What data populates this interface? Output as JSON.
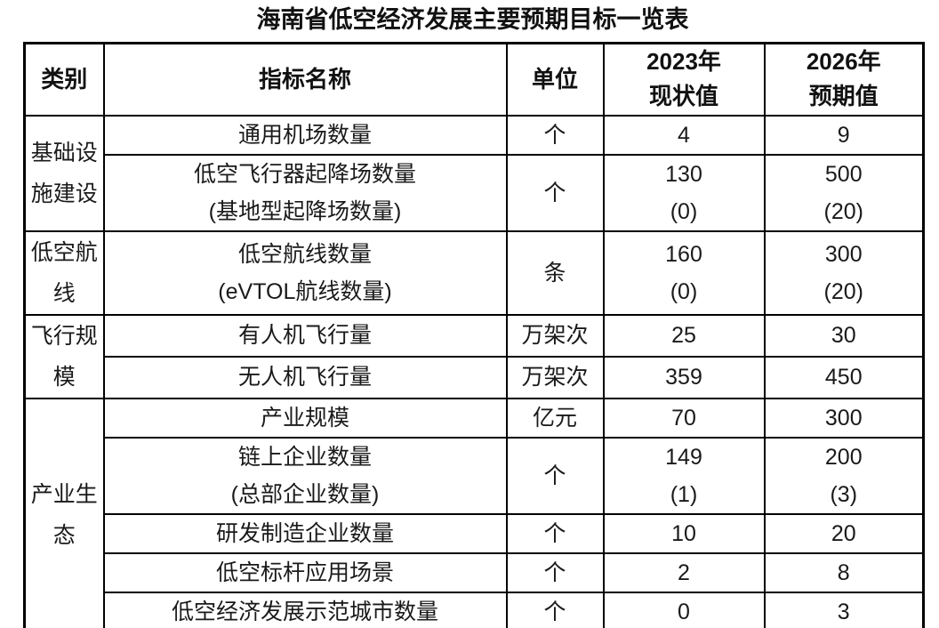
{
  "title": "海南省低空经济发展主要预期目标一览表",
  "header": {
    "category": "类别",
    "indicator": "指标名称",
    "unit": "单位",
    "y2023": "2023年\n现状值",
    "y2026": "2026年\n预期值"
  },
  "categories": [
    {
      "label": "基础设施建设"
    },
    {
      "label": "低空航线"
    },
    {
      "label": "飞行规模"
    },
    {
      "label": "产业生态"
    }
  ],
  "rows": [
    {
      "indicator": "通用机场数量",
      "unit": "个",
      "v2023": "4",
      "v2026": "9"
    },
    {
      "indicator": "低空飞行器起降场数量\n(基地型起降场数量)",
      "unit": "个",
      "v2023": "130\n(0)",
      "v2026": "500\n(20)"
    },
    {
      "indicator": "低空航线数量\n(eVTOL航线数量)",
      "unit": "条",
      "v2023": "160\n(0)",
      "v2026": "300\n(20)"
    },
    {
      "indicator": "有人机飞行量",
      "unit": "万架次",
      "v2023": "25",
      "v2026": "30"
    },
    {
      "indicator": "无人机飞行量",
      "unit": "万架次",
      "v2023": "359",
      "v2026": "450"
    },
    {
      "indicator": "产业规模",
      "unit": "亿元",
      "v2023": "70",
      "v2026": "300"
    },
    {
      "indicator": "链上企业数量\n(总部企业数量)",
      "unit": "个",
      "v2023": "149\n(1)",
      "v2026": "200\n(3)"
    },
    {
      "indicator": "研发制造企业数量",
      "unit": "个",
      "v2023": "10",
      "v2026": "20"
    },
    {
      "indicator": "低空标杆应用场景",
      "unit": "个",
      "v2023": "2",
      "v2026": "8"
    },
    {
      "indicator": "低空经济发展示范城市数量",
      "unit": "个",
      "v2023": "0",
      "v2026": "3"
    }
  ],
  "colors": {
    "border": "#000000",
    "text": "#1a1a1a",
    "background": "#ffffff"
  }
}
